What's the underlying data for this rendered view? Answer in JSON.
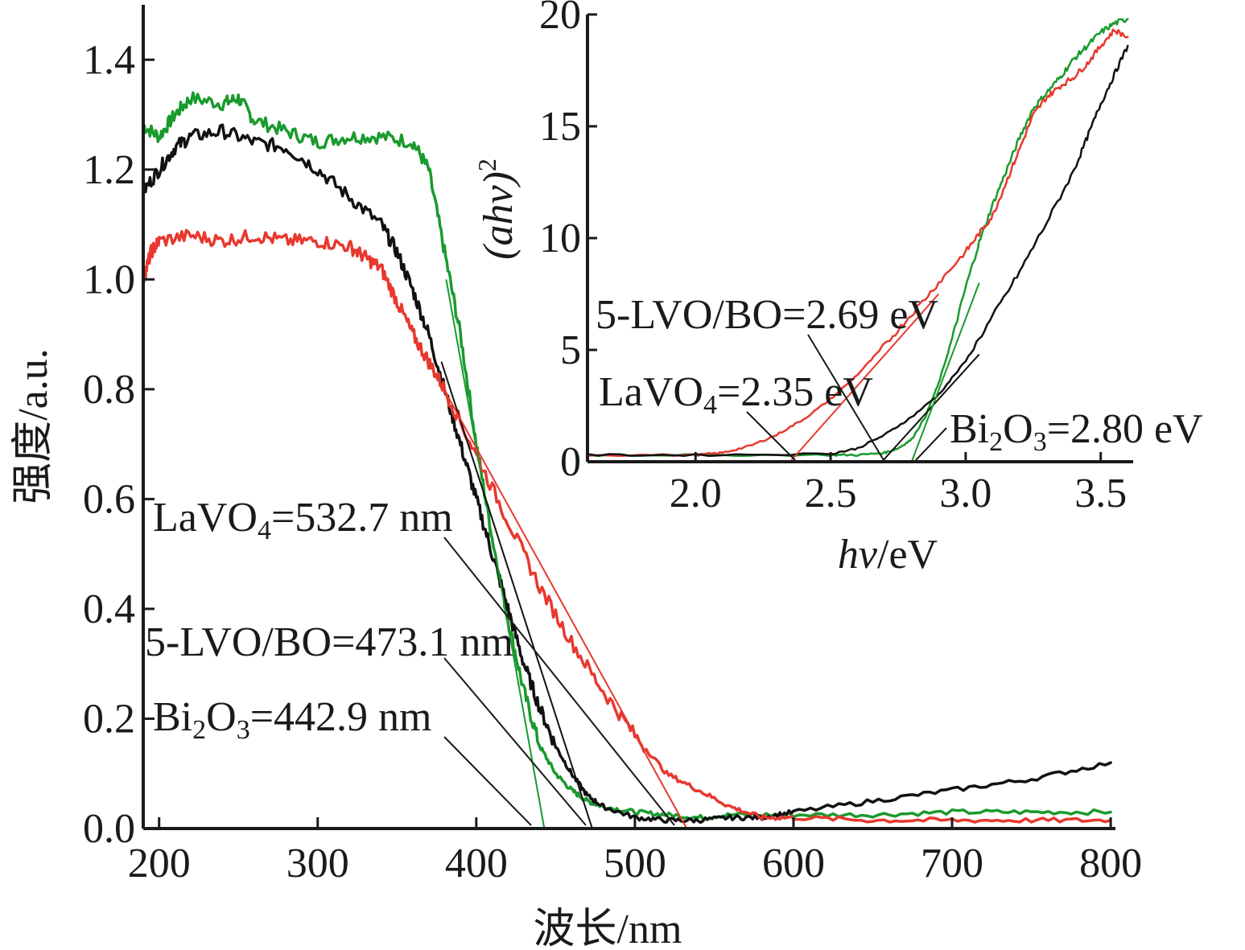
{
  "colors": {
    "black": "#111111",
    "red": "#e8382f",
    "green": "#1a9a2e",
    "axis": "#1a1a1a"
  },
  "chart_data": [
    {
      "id": "main",
      "type": "line",
      "xlabel": "波长/nm",
      "ylabel": "强度/a.u.",
      "xlim": [
        190,
        803
      ],
      "ylim": [
        0,
        1.5
      ],
      "xticks": [
        200,
        300,
        400,
        500,
        600,
        700,
        800
      ],
      "xtick_labels": [
        "200",
        "300",
        "400",
        "500",
        "600",
        "700",
        "800"
      ],
      "yticks": [
        0.0,
        0.2,
        0.4,
        0.6,
        0.8,
        1.0,
        1.2,
        1.4
      ],
      "ytick_labels": [
        "0.0",
        "0.2",
        "0.4",
        "0.6",
        "0.8",
        "1.0",
        "1.2",
        "1.4"
      ],
      "grid": false,
      "series": [
        {
          "color": "green",
          "x": [
            190,
            200,
            210,
            220,
            240,
            250,
            260,
            280,
            300,
            320,
            340,
            360,
            370,
            380,
            390,
            400,
            410,
            420,
            430,
            440,
            450,
            460,
            470,
            480,
            500,
            520,
            540,
            560,
            600,
            650,
            700,
            750,
            800
          ],
          "y": [
            1.28,
            1.26,
            1.3,
            1.33,
            1.32,
            1.33,
            1.29,
            1.27,
            1.25,
            1.26,
            1.26,
            1.25,
            1.2,
            1.05,
            0.9,
            0.7,
            0.53,
            0.38,
            0.25,
            0.15,
            0.1,
            0.07,
            0.05,
            0.04,
            0.03,
            0.025,
            0.02,
            0.025,
            0.025,
            0.025,
            0.03,
            0.03,
            0.03
          ]
        },
        {
          "color": "black",
          "x": [
            190,
            200,
            210,
            220,
            240,
            260,
            280,
            300,
            320,
            340,
            350,
            360,
            370,
            380,
            390,
            400,
            410,
            420,
            430,
            440,
            450,
            460,
            470,
            480,
            500,
            520,
            540,
            560,
            580,
            600,
            650,
            700,
            750,
            800
          ],
          "y": [
            1.16,
            1.2,
            1.24,
            1.26,
            1.27,
            1.25,
            1.24,
            1.2,
            1.15,
            1.1,
            1.05,
            0.98,
            0.9,
            0.8,
            0.7,
            0.6,
            0.5,
            0.4,
            0.3,
            0.22,
            0.15,
            0.1,
            0.06,
            0.04,
            0.02,
            0.015,
            0.015,
            0.02,
            0.02,
            0.03,
            0.05,
            0.07,
            0.09,
            0.12
          ]
        },
        {
          "color": "red",
          "x": [
            190,
            195,
            200,
            220,
            240,
            260,
            280,
            300,
            320,
            330,
            340,
            350,
            360,
            370,
            380,
            400,
            420,
            440,
            460,
            480,
            500,
            520,
            540,
            560,
            580,
            600,
            650,
            700,
            750,
            800
          ],
          "y": [
            1.0,
            1.05,
            1.07,
            1.08,
            1.07,
            1.08,
            1.07,
            1.07,
            1.06,
            1.04,
            1.02,
            0.96,
            0.9,
            0.85,
            0.8,
            0.68,
            0.56,
            0.44,
            0.34,
            0.25,
            0.17,
            0.1,
            0.07,
            0.04,
            0.02,
            0.02,
            0.015,
            0.015,
            0.015,
            0.015
          ]
        }
      ],
      "fit_lines": [
        {
          "color": "green",
          "x": [
            381,
            442.9
          ],
          "y": [
            1.0,
            0.0
          ]
        },
        {
          "color": "black",
          "x": [
            378,
            473.1
          ],
          "y": [
            0.85,
            0.0
          ]
        },
        {
          "color": "red",
          "x": [
            370,
            532.7
          ],
          "y": [
            0.85,
            0.0
          ]
        }
      ],
      "annotations": [
        {
          "label": "LaVO",
          "sub": "4",
          "rest": "=532.7 nm",
          "x": 532.7
        },
        {
          "label": "5-LVO/BO=473.1 nm",
          "sub": "",
          "rest": "",
          "x": 473.1
        },
        {
          "label": "Bi",
          "sub": "2",
          "rest": "O",
          "sub2": "3",
          "rest2": "=442.9 nm",
          "x": 442.9
        }
      ]
    },
    {
      "id": "inset",
      "type": "line",
      "xlabel_italic": "hv",
      "xlabel_rest": "/eV",
      "ylabel_italic": "(ahv)",
      "ylabel_sup": "2",
      "xlim": [
        1.6,
        3.62
      ],
      "ylim": [
        0,
        20
      ],
      "xticks": [
        2.0,
        2.5,
        3.0,
        3.5
      ],
      "xtick_labels": [
        "2.0",
        "2.5",
        "3.0",
        "3.5"
      ],
      "yticks": [
        0,
        5,
        10,
        15,
        20
      ],
      "ytick_labels": [
        "0",
        "5",
        "10",
        "15",
        "20"
      ],
      "grid": false,
      "series": [
        {
          "color": "green",
          "x": [
            1.6,
            2.0,
            2.5,
            2.6,
            2.7,
            2.75,
            2.8,
            2.85,
            2.9,
            2.95,
            3.0,
            3.05,
            3.1,
            3.15,
            3.2,
            3.25,
            3.3,
            3.35,
            3.4,
            3.45,
            3.5,
            3.55,
            3.6
          ],
          "y": [
            0.3,
            0.3,
            0.3,
            0.3,
            0.4,
            0.6,
            1.0,
            2.0,
            3.5,
            5.5,
            7.8,
            9.8,
            11.5,
            13.0,
            14.5,
            15.8,
            16.5,
            17.2,
            18.0,
            18.6,
            19.2,
            19.6,
            19.8
          ]
        },
        {
          "color": "red",
          "x": [
            1.6,
            2.0,
            2.1,
            2.2,
            2.3,
            2.4,
            2.5,
            2.6,
            2.7,
            2.8,
            2.9,
            3.0,
            3.05,
            3.1,
            3.15,
            3.2,
            3.25,
            3.3,
            3.35,
            3.4,
            3.45,
            3.5,
            3.55,
            3.6
          ],
          "y": [
            0.3,
            0.3,
            0.4,
            0.7,
            1.2,
            1.9,
            2.8,
            3.9,
            5.2,
            6.6,
            8.0,
            9.4,
            10.2,
            11.0,
            12.5,
            14.0,
            15.5,
            16.3,
            16.8,
            17.2,
            17.8,
            18.6,
            19.3,
            19.0
          ]
        },
        {
          "color": "black",
          "x": [
            1.6,
            2.0,
            2.5,
            2.6,
            2.7,
            2.8,
            2.9,
            3.0,
            3.1,
            3.2,
            3.3,
            3.4,
            3.45,
            3.5,
            3.55,
            3.6
          ],
          "y": [
            0.3,
            0.3,
            0.35,
            0.6,
            1.2,
            2.0,
            3.0,
            4.5,
            6.5,
            8.5,
            10.7,
            13.0,
            14.5,
            16.0,
            17.3,
            18.6
          ]
        }
      ],
      "fit_lines": [
        {
          "color": "red",
          "x": [
            2.35,
            2.9
          ],
          "y": [
            0.0,
            7.5
          ]
        },
        {
          "color": "black",
          "x": [
            2.69,
            3.05
          ],
          "y": [
            0.0,
            4.8
          ]
        },
        {
          "color": "green",
          "x": [
            2.8,
            3.05
          ],
          "y": [
            0.0,
            8.0
          ]
        }
      ],
      "annotations": [
        {
          "label": "5-LVO/BO=2.69 eV",
          "x": 2.69
        },
        {
          "label": "LaVO",
          "sub": "4",
          "rest": "=2.35 eV",
          "x": 2.35
        },
        {
          "label": "Bi",
          "sub": "2",
          "rest": "O",
          "sub2": "3",
          "rest2": "=2.80 eV",
          "x": 2.8
        }
      ]
    }
  ]
}
